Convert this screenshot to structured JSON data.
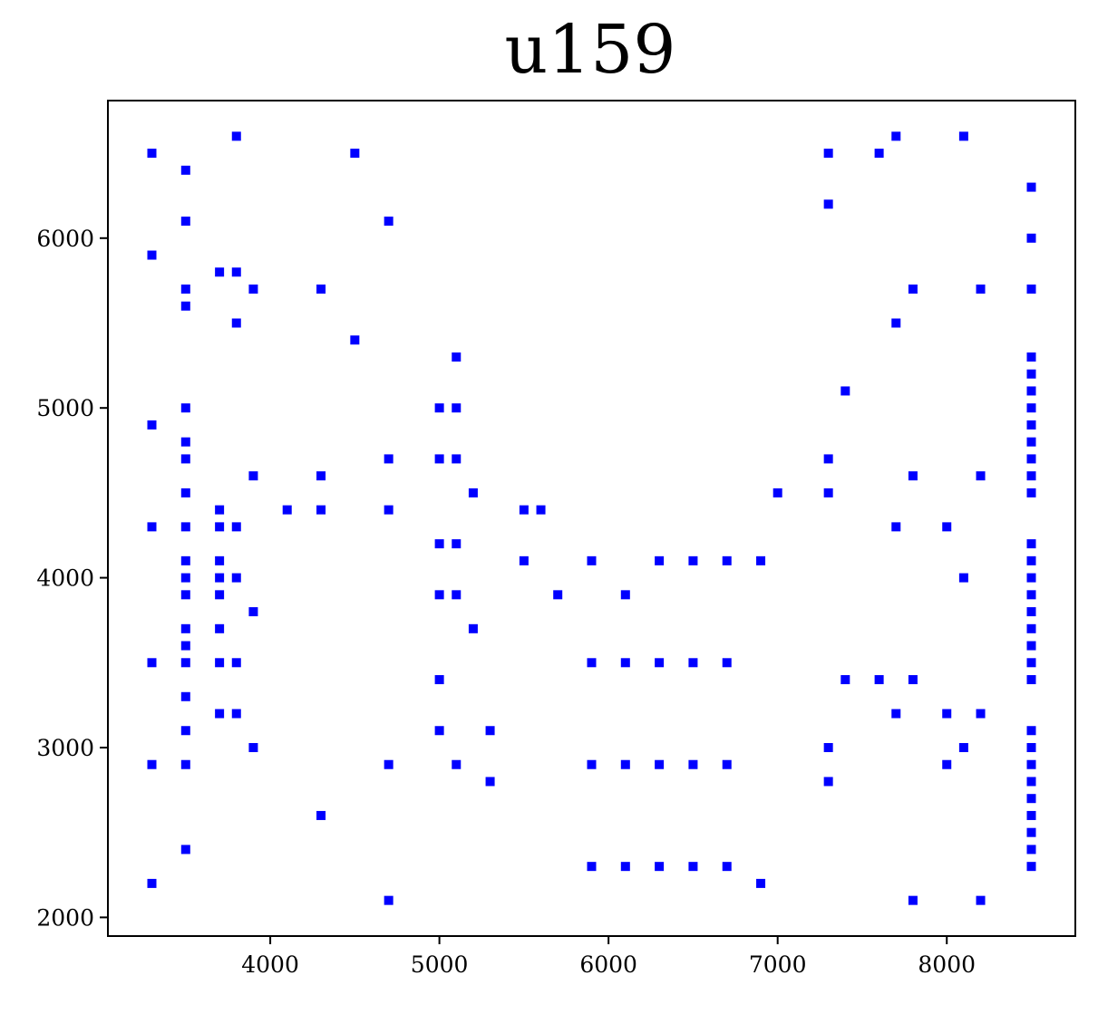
{
  "chart_data": {
    "type": "scatter",
    "title": "u159",
    "xlabel": "",
    "ylabel": "",
    "xlim": [
      3040,
      8760
    ],
    "ylim": [
      1890,
      6810
    ],
    "xticks": [
      4000,
      5000,
      6000,
      7000,
      8000
    ],
    "yticks": [
      2000,
      3000,
      4000,
      5000,
      6000
    ],
    "xtick_labels": [
      "4000",
      "5000",
      "6000",
      "7000",
      "8000"
    ],
    "ytick_labels": [
      "2000",
      "3000",
      "4000",
      "5000",
      "6000"
    ],
    "marker_color": "#0000ff",
    "grid": false,
    "points": [
      [
        3300,
        6500
      ],
      [
        3300,
        5900
      ],
      [
        3300,
        4900
      ],
      [
        3300,
        4300
      ],
      [
        3300,
        3500
      ],
      [
        3300,
        2900
      ],
      [
        3300,
        2200
      ],
      [
        3500,
        6400
      ],
      [
        3500,
        6100
      ],
      [
        3500,
        5700
      ],
      [
        3500,
        5600
      ],
      [
        3500,
        5000
      ],
      [
        3500,
        4800
      ],
      [
        3500,
        4700
      ],
      [
        3500,
        4500
      ],
      [
        3500,
        4300
      ],
      [
        3500,
        4100
      ],
      [
        3500,
        4000
      ],
      [
        3500,
        3900
      ],
      [
        3500,
        3700
      ],
      [
        3500,
        3600
      ],
      [
        3500,
        3500
      ],
      [
        3500,
        3300
      ],
      [
        3500,
        3100
      ],
      [
        3500,
        2900
      ],
      [
        3500,
        2400
      ],
      [
        3700,
        5800
      ],
      [
        3700,
        4400
      ],
      [
        3700,
        4300
      ],
      [
        3700,
        4100
      ],
      [
        3700,
        4000
      ],
      [
        3700,
        3900
      ],
      [
        3700,
        3700
      ],
      [
        3700,
        3500
      ],
      [
        3700,
        3200
      ],
      [
        3800,
        6600
      ],
      [
        3800,
        5800
      ],
      [
        3800,
        5500
      ],
      [
        3800,
        4300
      ],
      [
        3800,
        4000
      ],
      [
        3800,
        3500
      ],
      [
        3800,
        3200
      ],
      [
        3900,
        5700
      ],
      [
        3900,
        4600
      ],
      [
        3900,
        3800
      ],
      [
        3900,
        3000
      ],
      [
        4100,
        4400
      ],
      [
        4300,
        5700
      ],
      [
        4300,
        4600
      ],
      [
        4300,
        4400
      ],
      [
        4300,
        2600
      ],
      [
        4500,
        6500
      ],
      [
        4500,
        5400
      ],
      [
        4700,
        6100
      ],
      [
        4700,
        4700
      ],
      [
        4700,
        4400
      ],
      [
        4700,
        2900
      ],
      [
        4700,
        2100
      ],
      [
        5000,
        5000
      ],
      [
        5000,
        4700
      ],
      [
        5000,
        4200
      ],
      [
        5000,
        3900
      ],
      [
        5000,
        3400
      ],
      [
        5000,
        3100
      ],
      [
        5100,
        5300
      ],
      [
        5100,
        5000
      ],
      [
        5100,
        4700
      ],
      [
        5100,
        4200
      ],
      [
        5100,
        3900
      ],
      [
        5100,
        2900
      ],
      [
        5200,
        4500
      ],
      [
        5200,
        3700
      ],
      [
        5300,
        3100
      ],
      [
        5300,
        2800
      ],
      [
        5500,
        4400
      ],
      [
        5500,
        4100
      ],
      [
        5600,
        4400
      ],
      [
        5700,
        3900
      ],
      [
        5900,
        4100
      ],
      [
        5900,
        3500
      ],
      [
        5900,
        2900
      ],
      [
        5900,
        2300
      ],
      [
        6100,
        3900
      ],
      [
        6100,
        3500
      ],
      [
        6100,
        2900
      ],
      [
        6100,
        2300
      ],
      [
        6300,
        4100
      ],
      [
        6300,
        3500
      ],
      [
        6300,
        2900
      ],
      [
        6300,
        2300
      ],
      [
        6500,
        4100
      ],
      [
        6500,
        3500
      ],
      [
        6500,
        2900
      ],
      [
        6500,
        2300
      ],
      [
        6700,
        4100
      ],
      [
        6700,
        3500
      ],
      [
        6700,
        2900
      ],
      [
        6700,
        2300
      ],
      [
        6900,
        4100
      ],
      [
        6900,
        2200
      ],
      [
        7000,
        4500
      ],
      [
        7300,
        6500
      ],
      [
        7300,
        6200
      ],
      [
        7300,
        4700
      ],
      [
        7300,
        4500
      ],
      [
        7300,
        3000
      ],
      [
        7300,
        2800
      ],
      [
        7400,
        5100
      ],
      [
        7400,
        3400
      ],
      [
        7600,
        6500
      ],
      [
        7600,
        3400
      ],
      [
        7700,
        6600
      ],
      [
        7700,
        5500
      ],
      [
        7700,
        4300
      ],
      [
        7700,
        3200
      ],
      [
        7800,
        5700
      ],
      [
        7800,
        4600
      ],
      [
        7800,
        3400
      ],
      [
        7800,
        2100
      ],
      [
        8000,
        4300
      ],
      [
        8000,
        3200
      ],
      [
        8000,
        2900
      ],
      [
        8100,
        6600
      ],
      [
        8100,
        4000
      ],
      [
        8100,
        3000
      ],
      [
        8200,
        5700
      ],
      [
        8200,
        4600
      ],
      [
        8200,
        3200
      ],
      [
        8200,
        2100
      ],
      [
        8500,
        6300
      ],
      [
        8500,
        6000
      ],
      [
        8500,
        5700
      ],
      [
        8500,
        5300
      ],
      [
        8500,
        5200
      ],
      [
        8500,
        5100
      ],
      [
        8500,
        5000
      ],
      [
        8500,
        4900
      ],
      [
        8500,
        4800
      ],
      [
        8500,
        4700
      ],
      [
        8500,
        4600
      ],
      [
        8500,
        4500
      ],
      [
        8500,
        4200
      ],
      [
        8500,
        4100
      ],
      [
        8500,
        4000
      ],
      [
        8500,
        3900
      ],
      [
        8500,
        3800
      ],
      [
        8500,
        3700
      ],
      [
        8500,
        3600
      ],
      [
        8500,
        3500
      ],
      [
        8500,
        3400
      ],
      [
        8500,
        3100
      ],
      [
        8500,
        3000
      ],
      [
        8500,
        2900
      ],
      [
        8500,
        2800
      ],
      [
        8500,
        2700
      ],
      [
        8500,
        2600
      ],
      [
        8500,
        2500
      ],
      [
        8500,
        2400
      ],
      [
        8500,
        2300
      ]
    ]
  }
}
